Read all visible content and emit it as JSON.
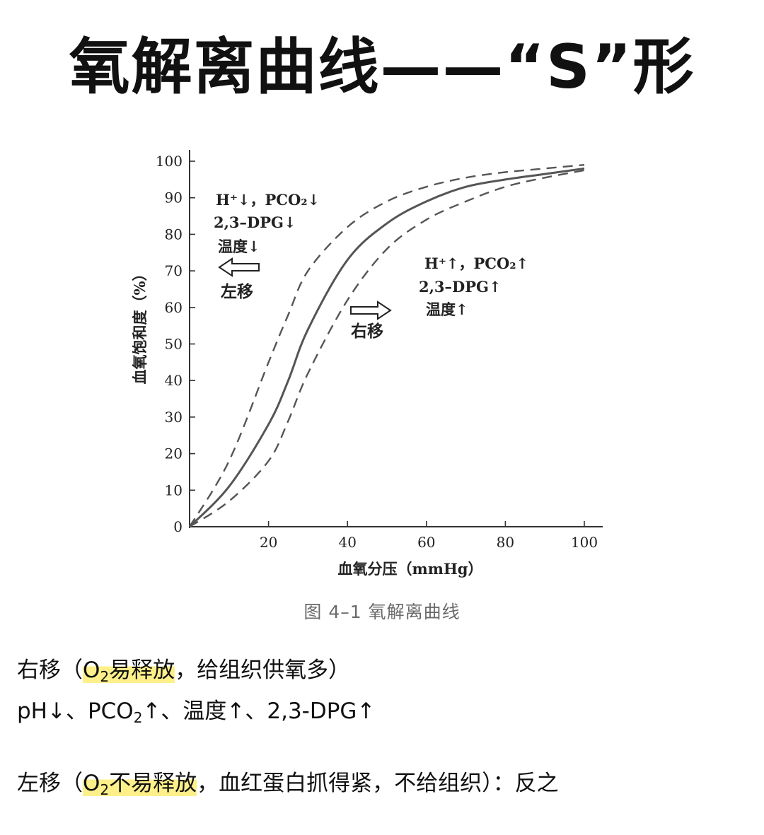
{
  "title": "氧解离曲线——“S”形",
  "chart_data": {
    "type": "line",
    "xlabel": "血氧分压（mmHg）",
    "ylabel": "血氧饱和度（%）",
    "xlim": [
      0,
      100
    ],
    "ylim": [
      0,
      100
    ],
    "x_ticks": [
      "20",
      "40",
      "60",
      "80",
      "100"
    ],
    "y_ticks": [
      "0",
      "10",
      "20",
      "30",
      "40",
      "50",
      "60",
      "70",
      "80",
      "90",
      "100"
    ],
    "series": [
      {
        "style": "dashed",
        "x": [
          0,
          10,
          20,
          25,
          30,
          40,
          50,
          60,
          70,
          80,
          90,
          100
        ],
        "y": [
          0,
          18,
          45,
          58,
          70,
          82,
          89,
          93,
          95.5,
          97,
          98,
          99
        ]
      },
      {
        "style": "solid",
        "x": [
          0,
          10,
          20,
          25,
          30,
          40,
          50,
          60,
          70,
          80,
          90,
          100
        ],
        "y": [
          0,
          11,
          28,
          40,
          54,
          73,
          83,
          89,
          93,
          95,
          96.5,
          98
        ]
      },
      {
        "style": "dashed",
        "x": [
          0,
          10,
          20,
          25,
          30,
          40,
          50,
          60,
          70,
          80,
          90,
          100
        ],
        "y": [
          0,
          7,
          18,
          29,
          42,
          62,
          76,
          84,
          89,
          93,
          95.5,
          97.5
        ]
      }
    ],
    "annotations": {
      "left": {
        "line1": "H⁺↓，PCO₂↓",
        "line2": "2,3–DPG↓",
        "line3": "温度↓",
        "shift": "左移"
      },
      "right": {
        "line1": "H⁺↑，PCO₂↑",
        "line2": "2,3–DPG↑",
        "line3": "温度↑",
        "shift": "右移"
      }
    },
    "caption": "图 4–1    氧解离曲线"
  },
  "notes": {
    "right_shift_prefix": "右移（",
    "right_shift_o": "O",
    "right_shift_sub": "2",
    "right_shift_hl": "易释放",
    "right_shift_rest": "，给组织供氧多）",
    "right_factors_a": "pH↓、PCO",
    "right_factors_sub": "2",
    "right_factors_b": "↑、温度↑、2,3-DPG↑",
    "left_shift_prefix": "左移（",
    "left_shift_o": "O",
    "left_shift_sub": "2",
    "left_shift_hl": "不易释放",
    "left_shift_rest": "，血红蛋白抓得紧，不给组织）：反之"
  },
  "colors": {
    "highlight": "#fdf08a",
    "curve": "#555555",
    "axis": "#333333"
  }
}
